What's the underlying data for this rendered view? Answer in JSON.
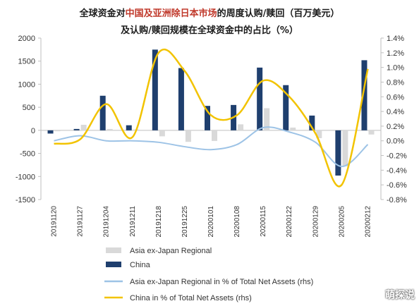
{
  "title": {
    "part1": "全球资金对",
    "highlight": "中国及亚洲除日本市场",
    "part2": "的周度认购/赎回（百万美元）",
    "line2": "及认购/赎回规模在全球资金中的占比（%）"
  },
  "watermark": "萌探说",
  "colors": {
    "asia_bar": "#d9d9d9",
    "china_bar": "#1f3f6e",
    "asia_line": "#9dc3e6",
    "china_line": "#f2c300",
    "axis": "#bfbfbf"
  },
  "chart_data": {
    "type": "bar",
    "categories": [
      "20191120",
      "20191127",
      "20191204",
      "20191211",
      "20191218",
      "20191225",
      "20200101",
      "20200108",
      "20200115",
      "20200122",
      "20200129",
      "20200205",
      "20200212"
    ],
    "left_axis": {
      "ylim": [
        -1500,
        2000
      ],
      "ticks": [
        "2000",
        "1500",
        "1000",
        "500",
        "0",
        "-500",
        "-1000",
        "-1500"
      ],
      "tick_values": [
        2000,
        1500,
        1000,
        500,
        0,
        -500,
        -1000,
        -1500
      ]
    },
    "right_axis": {
      "ylim": [
        -0.8,
        1.4
      ],
      "ticks": [
        "1.4%",
        "1.2%",
        "1.0%",
        "0.8%",
        "0.6%",
        "0.4%",
        "0.2%",
        "0.0%",
        "-0.2%",
        "-0.4%",
        "-0.6%",
        "-0.8%"
      ],
      "tick_values": [
        1.4,
        1.2,
        1.0,
        0.8,
        0.6,
        0.4,
        0.2,
        0.0,
        -0.2,
        -0.4,
        -0.6,
        -0.8
      ]
    },
    "series": [
      {
        "name": "Asia ex-Japan Regional",
        "kind": "bar",
        "axis": "left",
        "values": [
          -20,
          120,
          30,
          20,
          -130,
          -250,
          -230,
          130,
          480,
          60,
          -170,
          -780,
          -90
        ]
      },
      {
        "name": "China",
        "kind": "bar",
        "axis": "left",
        "values": [
          -70,
          30,
          750,
          110,
          1750,
          1350,
          530,
          550,
          1360,
          980,
          320,
          -980,
          1520
        ]
      },
      {
        "name": "Asia ex-Japan Regional  in % of Total Net Assets (rhs)",
        "kind": "line",
        "axis": "right",
        "values": [
          0.0,
          0.07,
          0.0,
          0.0,
          -0.02,
          -0.08,
          -0.12,
          -0.05,
          0.18,
          0.12,
          -0.02,
          -0.35,
          -0.05
        ]
      },
      {
        "name": "China in % of Total Net Assets (rhs)",
        "kind": "line",
        "axis": "right",
        "values": [
          -0.04,
          0.02,
          0.5,
          0.05,
          1.2,
          0.95,
          0.35,
          0.35,
          0.82,
          0.6,
          0.1,
          -0.6,
          0.98
        ]
      }
    ]
  }
}
